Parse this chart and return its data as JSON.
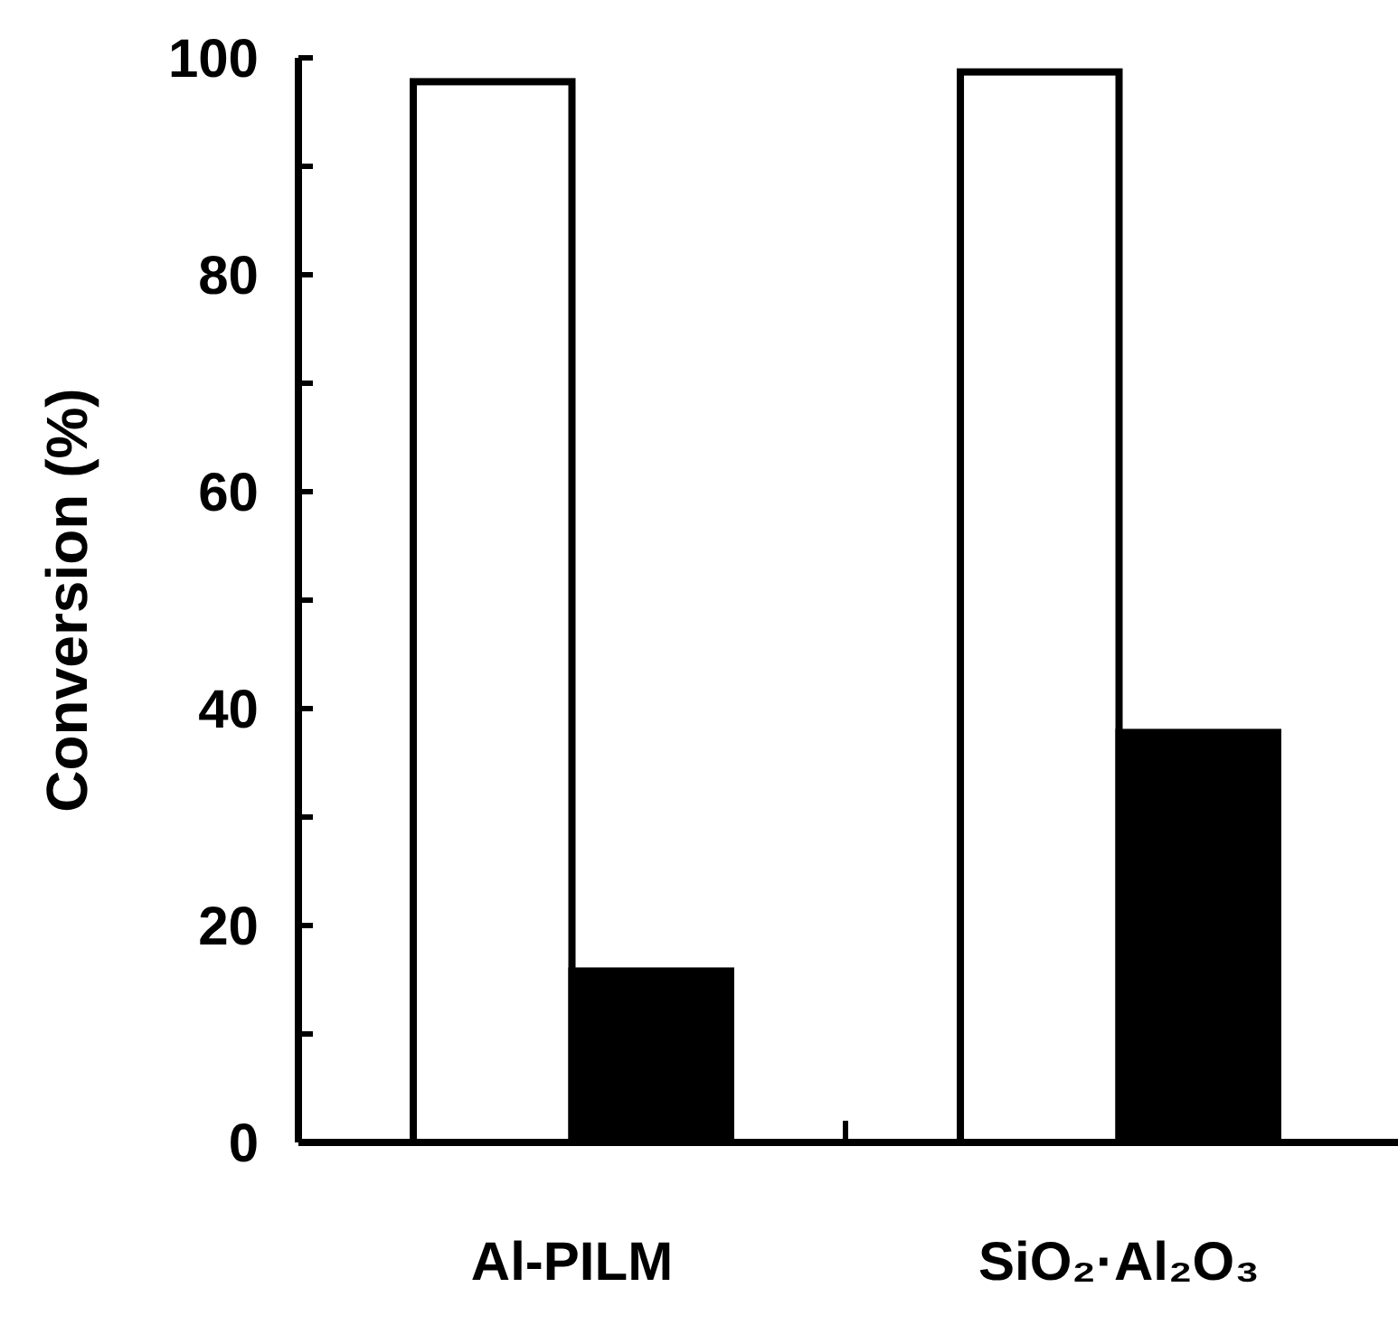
{
  "chart_data": {
    "type": "bar",
    "ylabel": "Conversion (%)",
    "categories": [
      "Al-PILM",
      "SiO₂·Al₂O₃"
    ],
    "series": [
      {
        "color": "#ffffff",
        "values": [
          97.8,
          98.7
        ]
      },
      {
        "color": "#000000",
        "values": [
          15.8,
          37.8
        ]
      }
    ],
    "ylim": [
      0,
      100
    ],
    "yticks": [
      0,
      {
        "value": 10,
        "label": null
      },
      20,
      {
        "value": 30,
        "label": null
      },
      40,
      {
        "value": 50,
        "label": null
      },
      60,
      {
        "value": 70,
        "label": null
      },
      80,
      {
        "value": 90,
        "label": null
      },
      100
    ]
  }
}
